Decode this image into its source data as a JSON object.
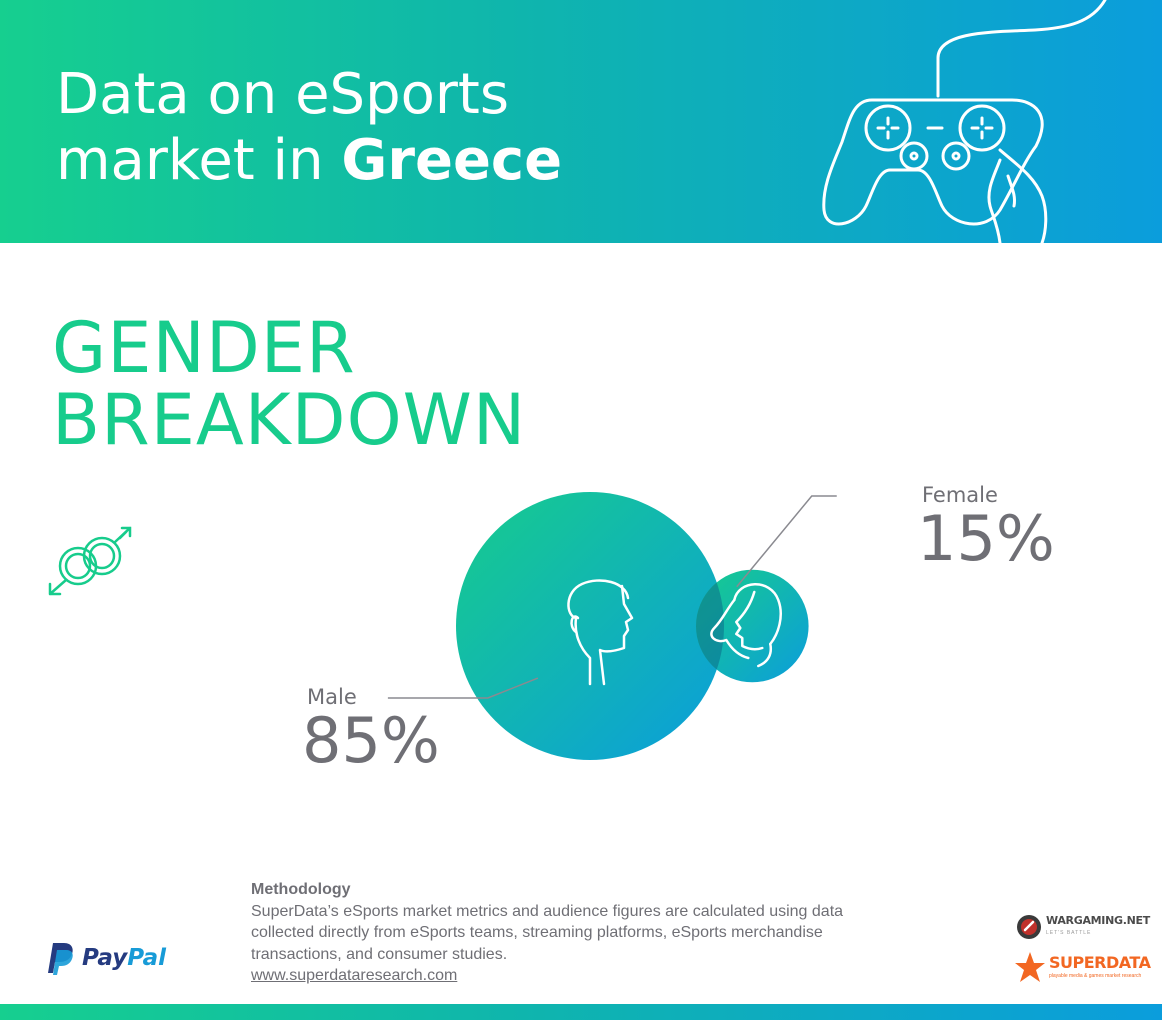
{
  "header": {
    "title_line1": "Data on eSports",
    "title_line2_prefix": "market in ",
    "title_line2_bold": "Greece",
    "icon": "game-controller-icon"
  },
  "section": {
    "title_line1": "GENDER",
    "title_line2": "BREAKDOWN",
    "icon": "gender-symbols-icon"
  },
  "chart_data": {
    "type": "bubble",
    "title": "GENDER BREAKDOWN",
    "categories": [
      "Male",
      "Female"
    ],
    "values": [
      85,
      15
    ],
    "value_labels": [
      "85%",
      "15%"
    ],
    "unit": "%",
    "icons": [
      "male-head-icon",
      "female-head-icon"
    ],
    "colors": {
      "gradient_start": "#17cc8c",
      "gradient_end": "#0b9ddc"
    }
  },
  "methodology": {
    "title": "Methodology",
    "line1": "SuperData’s eSports market metrics and audience figures are calculated using data",
    "line2": "collected directly from eSports teams, streaming platforms, eSports merchandise",
    "line3": "transactions, and consumer studies.",
    "link": "www.superdataresearch.com"
  },
  "logos": {
    "paypal_part1": "Pay",
    "paypal_part2": "Pal",
    "wargaming_name": "WARGAMING.NET",
    "wargaming_tagline": "LET'S BATTLE",
    "superdata_name": "SUPERDATA",
    "superdata_tagline": "playable media & games market research"
  },
  "colors": {
    "accent_green": "#17cc8c",
    "accent_blue": "#0b9ddc",
    "text_gray": "#6f6f75"
  }
}
